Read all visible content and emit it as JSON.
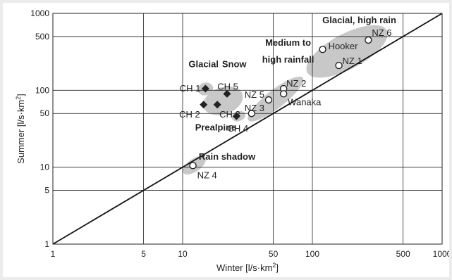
{
  "chart_data": {
    "type": "scatter",
    "xlabel": "Winter [l/s·km",
    "xlabel_sup": "2",
    "xlabel_end": "]",
    "ylabel": "Summer [l/s·km",
    "ylabel_sup": "2",
    "ylabel_end": "]",
    "x_scale": "log",
    "y_scale": "log",
    "xlim": [
      1,
      1000
    ],
    "ylim": [
      1,
      1000
    ],
    "grid": true,
    "x_ticks": [
      1,
      5,
      10,
      50,
      100,
      500,
      1000
    ],
    "y_ticks": [
      1,
      5,
      10,
      50,
      100,
      500,
      1000
    ],
    "identity_line": {
      "from": [
        1,
        1
      ],
      "to": [
        1000,
        1000
      ]
    },
    "series": [
      {
        "marker": "diamond-filled",
        "points": [
          {
            "label": "CH 1",
            "x": 15,
            "y": 105
          },
          {
            "label": "CH 5",
            "x": 22,
            "y": 90
          },
          {
            "label": "CH 2",
            "x": 14.5,
            "y": 65
          },
          {
            "label": "CH 3",
            "x": 18.5,
            "y": 65
          },
          {
            "label": "CH 4",
            "x": 26,
            "y": 46
          }
        ]
      },
      {
        "marker": "circle-open",
        "points": [
          {
            "label": "NZ 3",
            "x": 34,
            "y": 50
          },
          {
            "label": "NZ 5",
            "x": 46,
            "y": 75
          },
          {
            "label": "NZ 2",
            "x": 60,
            "y": 105
          },
          {
            "label": "Wanaka",
            "x": 60,
            "y": 90
          },
          {
            "label": "NZ 4",
            "x": 12,
            "y": 10.5
          },
          {
            "label": "Hooker",
            "x": 120,
            "y": 340
          },
          {
            "label": "NZ 1",
            "x": 160,
            "y": 210
          },
          {
            "label": "NZ 6",
            "x": 270,
            "y": 450
          }
        ]
      }
    ],
    "groups": [
      "Glacial",
      "Snow",
      "Prealpine",
      "Medium to",
      "high rainfall",
      "Glacial, high rain",
      "Rain shadow"
    ],
    "colors": {
      "points": "#222222",
      "groups": "#c8c8c8",
      "grid": "#222222",
      "line": "#111111"
    }
  }
}
